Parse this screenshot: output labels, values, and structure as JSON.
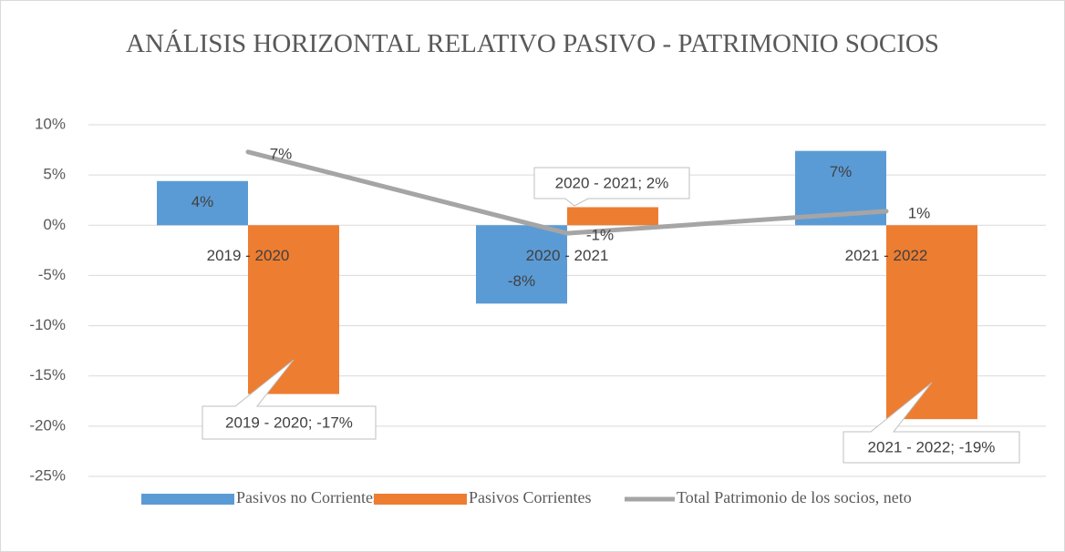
{
  "chart_data": {
    "type": "bar",
    "title": "ANÁLISIS HORIZONTAL RELATIVO PASIVO - PATRIMONIO SOCIOS",
    "categories": [
      "2019 - 2020",
      "2020 - 2021",
      "2021 - 2022"
    ],
    "series": [
      {
        "name": "Pasivos no Corrientes",
        "type": "bar",
        "color": "#5b9bd5",
        "values": [
          4.4,
          -7.8,
          7.4
        ],
        "value_labels": [
          "4%",
          "-8%",
          "7%"
        ]
      },
      {
        "name": "Pasivos Corrientes",
        "type": "bar",
        "color": "#ed7d31",
        "values": [
          -16.8,
          1.8,
          -19.3
        ],
        "value_labels": [
          "2019 - 2020; -17%",
          "2020 - 2021; 2%",
          "2021 - 2022; -19%"
        ]
      },
      {
        "name": "Total Patrimonio de los socios, neto",
        "type": "line",
        "color": "#a5a5a5",
        "values": [
          7.3,
          -0.8,
          1.4
        ],
        "value_labels": [
          "7%",
          "-1%",
          "1%"
        ]
      }
    ],
    "ylim": [
      -25,
      10
    ],
    "yticks": [
      {
        "value": 10,
        "label": "10%"
      },
      {
        "value": 5,
        "label": "5%"
      },
      {
        "value": 0,
        "label": "0%"
      },
      {
        "value": -5,
        "label": "-5%"
      },
      {
        "value": -10,
        "label": "-10%"
      },
      {
        "value": -15,
        "label": "-15%"
      },
      {
        "value": -20,
        "label": "-20%"
      },
      {
        "value": -25,
        "label": "-25%"
      }
    ],
    "grid": true,
    "legend": "bottom"
  }
}
